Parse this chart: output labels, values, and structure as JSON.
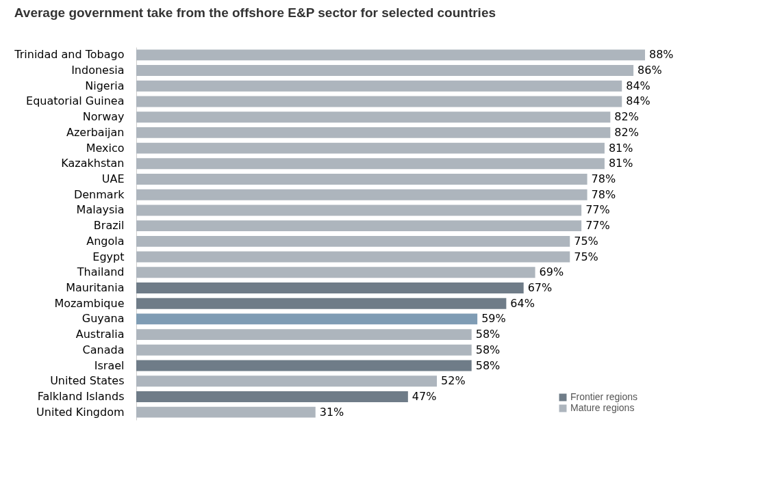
{
  "chart_data": {
    "type": "bar",
    "orientation": "horizontal",
    "title": "Average government take from the offshore E&P sector for selected countries",
    "categories": [
      "Trinidad and Tobago",
      "Indonesia",
      "Nigeria",
      "Equatorial Guinea",
      "Norway",
      "Azerbaijan",
      "Mexico",
      "Kazakhstan",
      "UAE",
      "Denmark",
      "Malaysia",
      "Brazil",
      "Angola",
      "Egypt",
      "Thailand",
      "Mauritania",
      "Mozambique",
      "Guyana",
      "Australia",
      "Canada",
      "Israel",
      "United States",
      "Falkland Islands",
      "United Kingdom"
    ],
    "series": [
      {
        "name": "Frontier regions",
        "color": "#6f7c88",
        "values": [
          null,
          null,
          null,
          null,
          null,
          null,
          null,
          null,
          null,
          null,
          null,
          null,
          null,
          null,
          null,
          67,
          64,
          null,
          null,
          null,
          58,
          null,
          47,
          null
        ],
        "value_labels": [
          null,
          null,
          null,
          null,
          null,
          null,
          null,
          null,
          null,
          null,
          null,
          null,
          null,
          null,
          null,
          "67%",
          "64%",
          null,
          null,
          null,
          "58%",
          null,
          "47%",
          null
        ]
      },
      {
        "name": "Mature regions",
        "color": "#adb5bd",
        "values": [
          88,
          86,
          84,
          84,
          82,
          82,
          81,
          81,
          78,
          78,
          77,
          77,
          75,
          75,
          69,
          null,
          null,
          null,
          58,
          58,
          null,
          52,
          null,
          31
        ],
        "value_labels": [
          "88%",
          "86%",
          "84%",
          "84%",
          "82%",
          "82%",
          "81%",
          "81%",
          "78%",
          "78%",
          "77%",
          "77%",
          "75%",
          "75%",
          "69%",
          null,
          null,
          null,
          "58%",
          "58%",
          null,
          "52%",
          null,
          "31%"
        ]
      },
      {
        "color": "#7f9cb4",
        "values": [
          null,
          null,
          null,
          null,
          null,
          null,
          null,
          null,
          null,
          null,
          null,
          null,
          null,
          null,
          null,
          null,
          null,
          59,
          null,
          null,
          null,
          null,
          null,
          null
        ],
        "value_labels": [
          null,
          null,
          null,
          null,
          null,
          null,
          null,
          null,
          null,
          null,
          null,
          null,
          null,
          null,
          null,
          null,
          null,
          "59%",
          null,
          null,
          null,
          null,
          null,
          null
        ]
      }
    ],
    "legend": "bottom right",
    "grid": false,
    "tick_labels": "y"
  }
}
